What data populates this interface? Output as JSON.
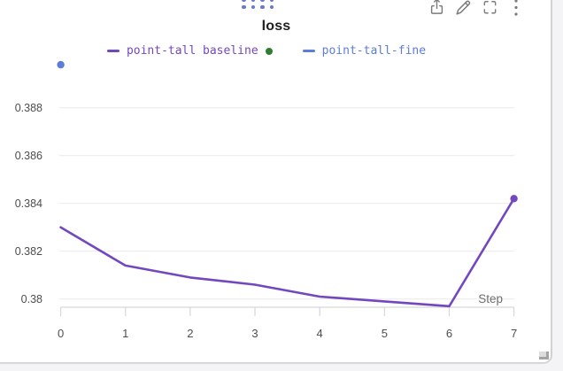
{
  "panel": {
    "toolbar": {
      "icons": [
        "export-icon",
        "edit-pencil-icon",
        "fullscreen-icon",
        "kebab-menu-icon"
      ]
    },
    "drag_handle": "dots-grid-handle"
  },
  "legend": {
    "position": "top",
    "items": [
      {
        "label": "point-tall baseline",
        "color": "#7348BE",
        "state_dot_color": "#2E7D32"
      },
      {
        "label": "point-tall-fine",
        "color": "#5C7CD9"
      }
    ]
  },
  "chart_data": {
    "type": "line",
    "title": "loss",
    "xlabel": "Step",
    "ylabel": "",
    "x_ticks": [
      0,
      1,
      2,
      3,
      4,
      5,
      6,
      7
    ],
    "y_ticks": [
      "0.38",
      "0.382",
      "0.384",
      "0.386",
      "0.388"
    ],
    "xlim": [
      0,
      7
    ],
    "ylim": [
      0.3796,
      0.39
    ],
    "grid": "horizontal-only",
    "legend_position": "top",
    "series": [
      {
        "name": "point-tall baseline",
        "color": "#7348BE",
        "x": [
          0,
          1,
          2,
          3,
          4,
          5,
          6,
          7
        ],
        "y": [
          0.383,
          0.3814,
          0.3809,
          0.3806,
          0.3801,
          0.3799,
          0.3797,
          0.3842
        ],
        "draw_line": true,
        "end_marker": true,
        "markers_all": false
      },
      {
        "name": "point-tall-fine",
        "color": "#5C7CD9",
        "x": [
          0
        ],
        "y": [
          0.3898
        ],
        "draw_line": false,
        "end_marker": false,
        "markers_all": true
      }
    ],
    "colors": {
      "gridline": "#ebebeb",
      "axis": "#d7d7d7",
      "tick_label": "#4d4d4d",
      "axis_label": "#6e6e6e"
    }
  }
}
